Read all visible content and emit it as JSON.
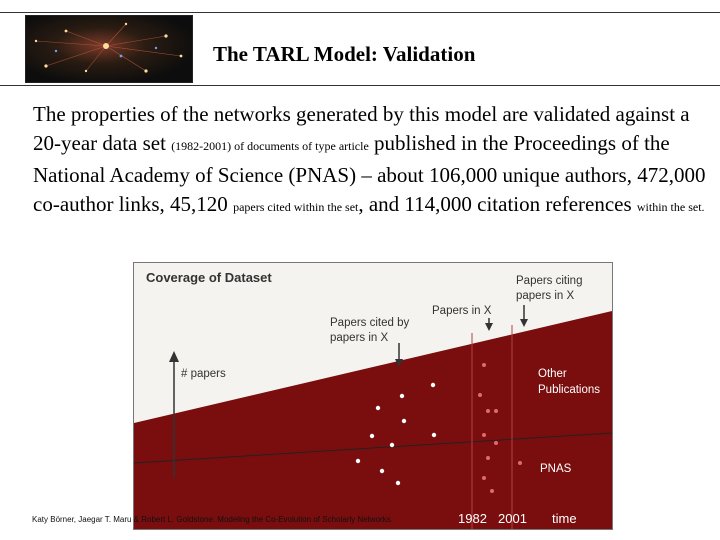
{
  "slide": {
    "title": "The TARL Model: Validation",
    "body_parts": [
      "The properties of the networks generated by this model are validated against a 20-year data set ",
      "(1982-2001)  of documents of type article",
      " published in the Proceedings of the National Academy of Science (PNAS) – about 106,000 unique authors, 472,000 co-author links, 45,120 ",
      "papers cited within the set",
      ", and 114,000 citation references ",
      "within the set."
    ],
    "credit": "Katy Börner, Jaegar T. Maru  & Robert L. Goldstone: Modeling the Co-Evolution of Scholarly Networks."
  },
  "chart_data": {
    "type": "area",
    "title": "Coverage of Dataset",
    "xlabel": "time",
    "ylabel": "# papers",
    "x_ticks": [
      "1982",
      "2001"
    ],
    "series": [
      {
        "name": "PNAS",
        "shape": "rising filled wedge between 1982 and 2001",
        "color": "#7a0e0e"
      },
      {
        "name": "Other Publications",
        "shape": "line above PNAS"
      }
    ],
    "annotations": {
      "papers_cited": "Papers cited by papers in X",
      "papers_in_x": "Papers in X",
      "papers_citing": "Papers citing papers in X",
      "other_publications": "Other Publications",
      "pnas": "PNAS"
    },
    "colors": {
      "fill": "#7a0e0e",
      "background": "#f4f3ef",
      "dots": "#ffffff",
      "accent_dots": "#e06a6a"
    }
  }
}
